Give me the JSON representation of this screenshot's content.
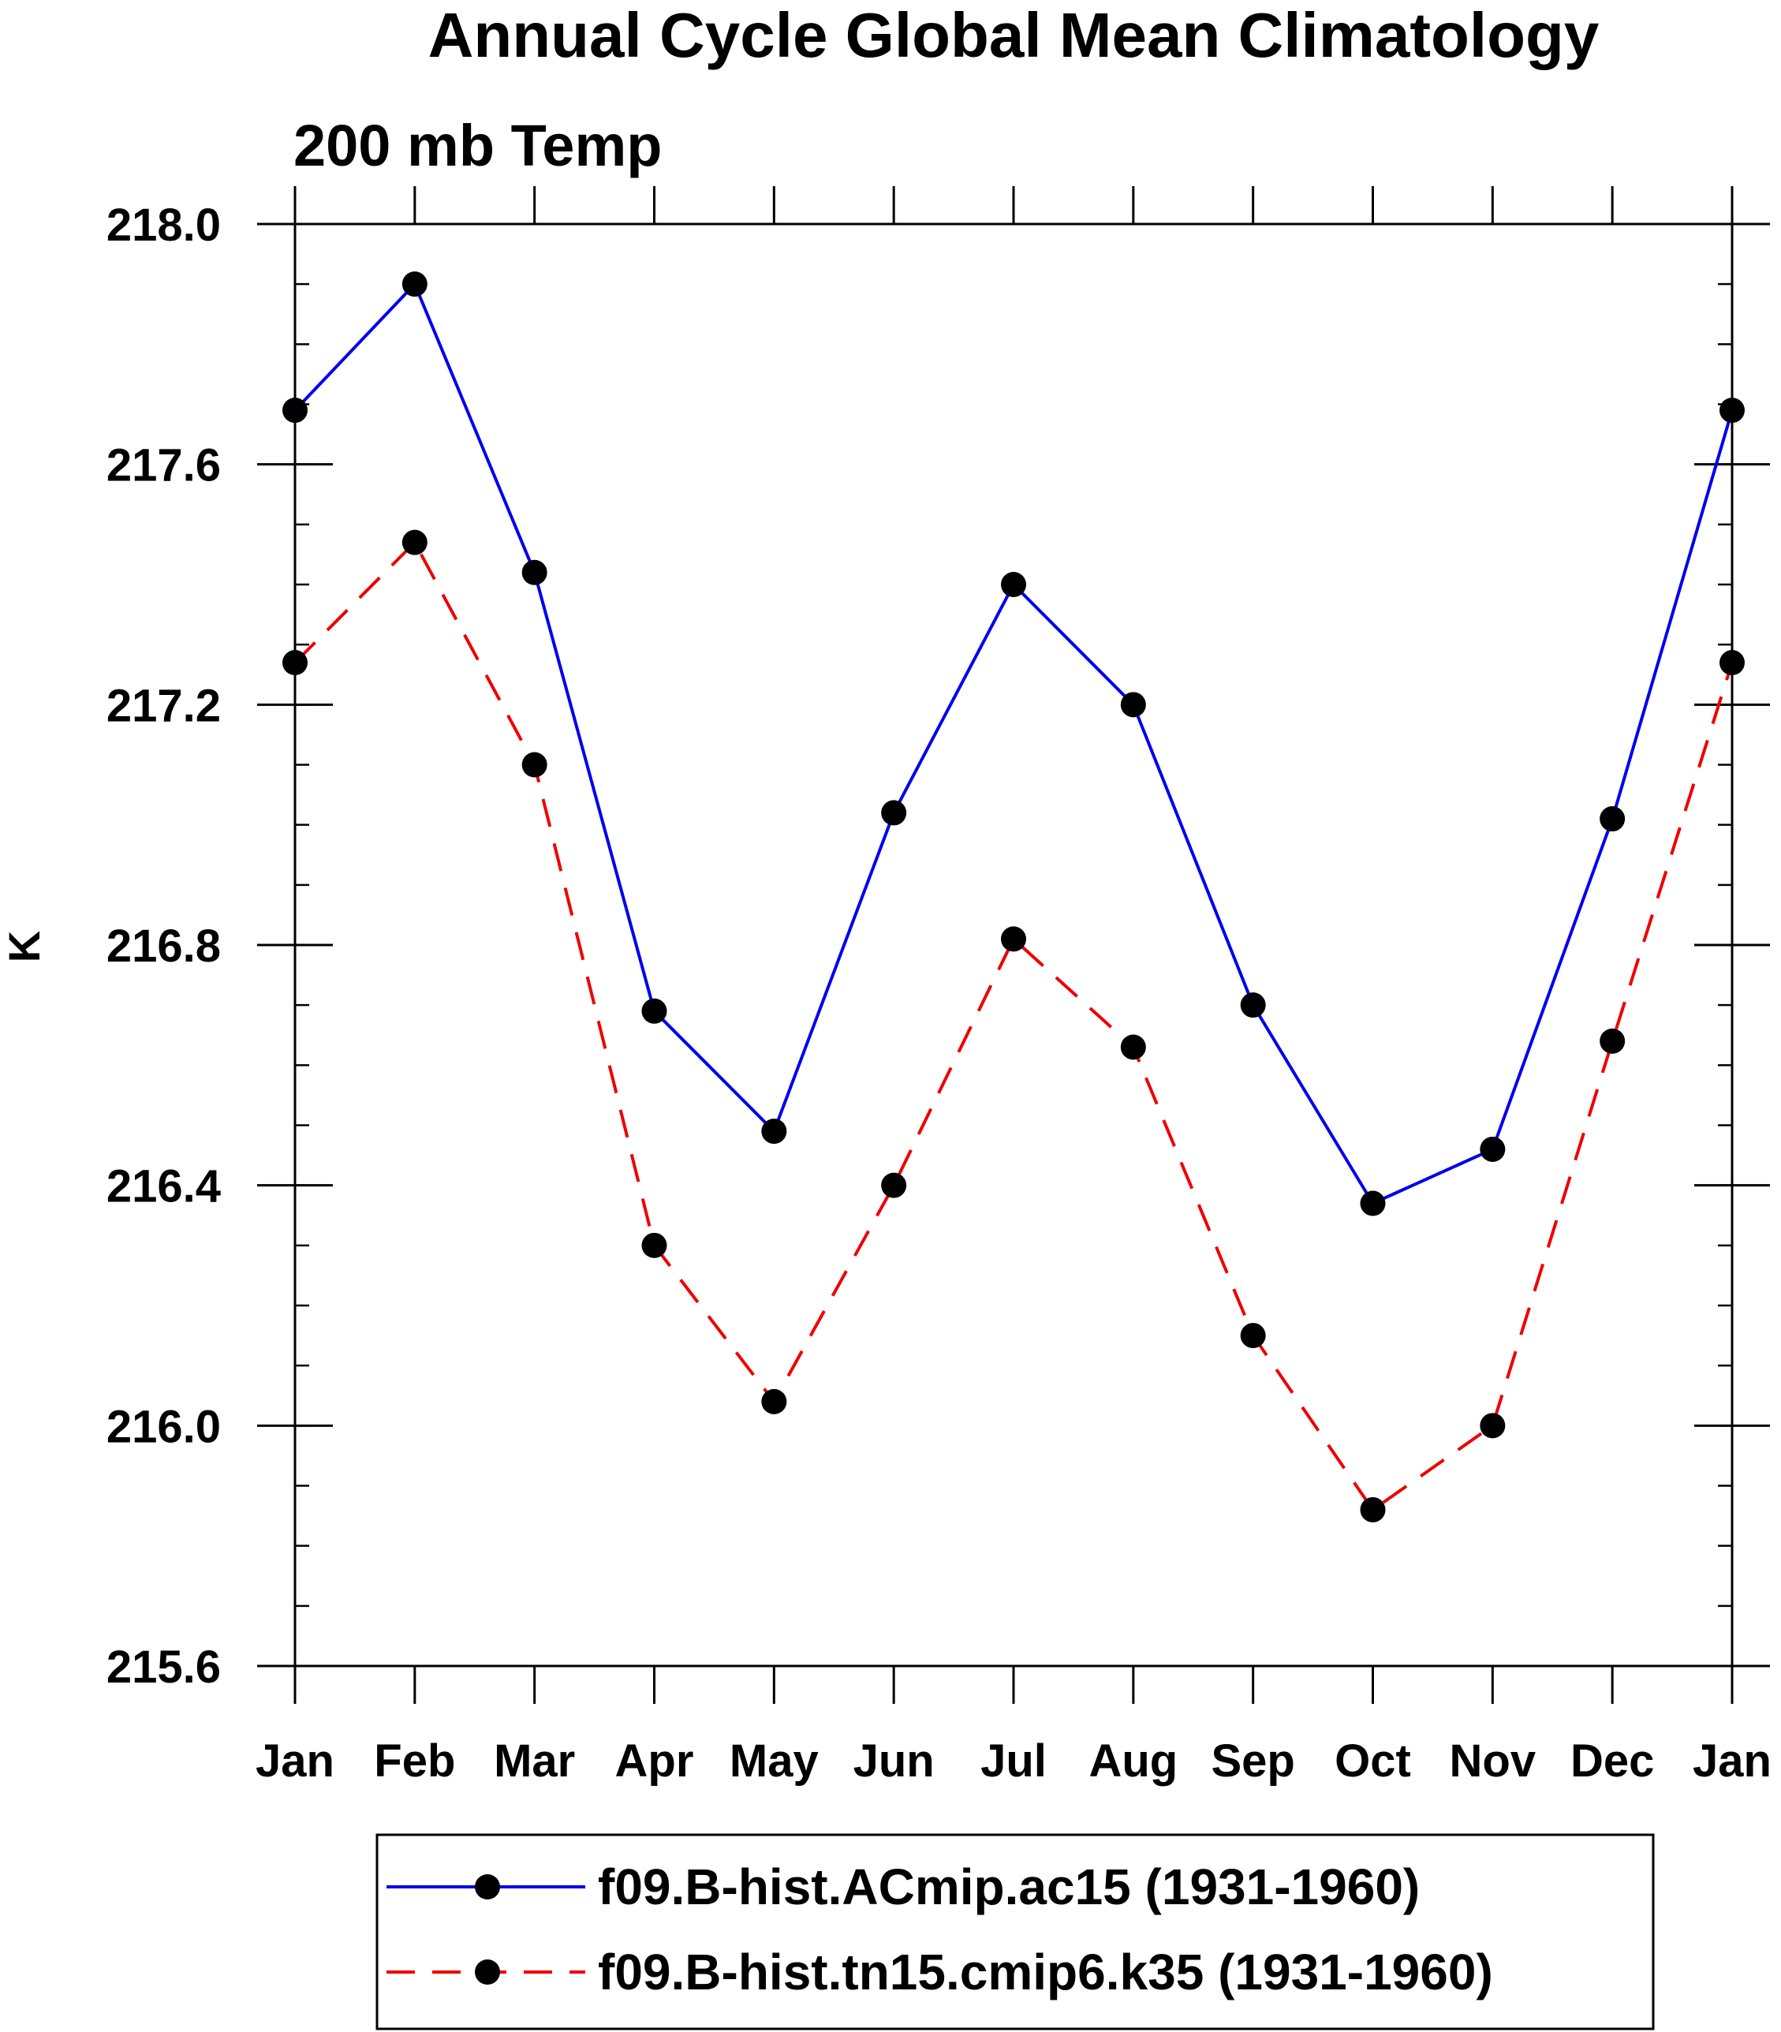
{
  "chart_data": {
    "type": "line",
    "title": "Annual Cycle Global Mean Climatology",
    "subtitle": "200 mb Temp",
    "xlabel": "",
    "ylabel": "K",
    "categories": [
      "Jan",
      "Feb",
      "Mar",
      "Apr",
      "May",
      "Jun",
      "Jul",
      "Aug",
      "Sep",
      "Oct",
      "Nov",
      "Dec",
      "Jan"
    ],
    "ylim": [
      215.6,
      218.0
    ],
    "yticks": [
      215.6,
      216.0,
      216.4,
      216.8,
      217.2,
      217.6,
      218.0
    ],
    "ytick_labels": [
      "215.6",
      "216.0",
      "216.4",
      "216.8",
      "217.2",
      "217.6",
      "218.0"
    ],
    "y_minor_step": 0.1,
    "grid": false,
    "legend_position": "bottom",
    "series": [
      {
        "name": "f09.B-hist.ACmip.ac15 (1931-1960)",
        "color": "#0000ee",
        "style": "solid",
        "values": [
          217.69,
          217.9,
          217.42,
          216.69,
          216.49,
          217.02,
          217.4,
          217.2,
          216.7,
          216.37,
          216.46,
          217.01,
          217.69
        ]
      },
      {
        "name": "f09.B-hist.tn15.cmip6.k35 (1931-1960)",
        "color": "#ee0000",
        "style": "dashed",
        "values": [
          217.27,
          217.47,
          217.1,
          216.3,
          216.04,
          216.4,
          216.81,
          216.63,
          216.15,
          215.86,
          216.0,
          216.64,
          217.27
        ]
      }
    ]
  }
}
